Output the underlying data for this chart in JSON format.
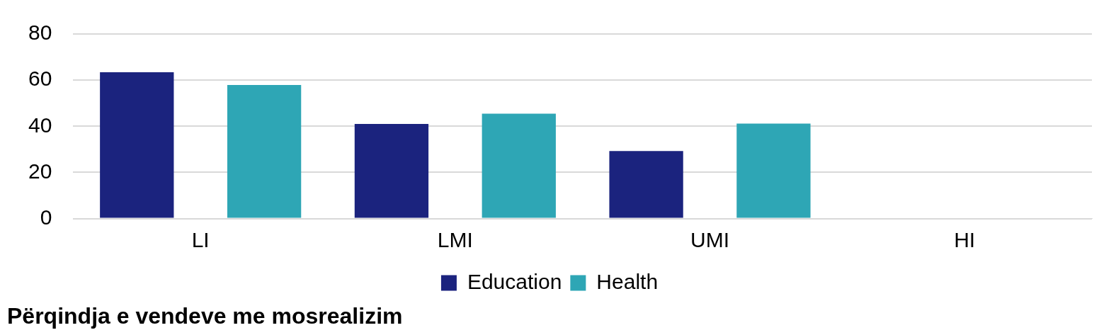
{
  "chart_data": {
    "type": "bar",
    "title": "Përqindja e vendeve me mosrealizim",
    "categories": [
      "LI",
      "LMI",
      "UMI",
      "HI"
    ],
    "series": [
      {
        "name": "Education",
        "color": "#1b237e",
        "values": [
          63.4,
          41,
          29.3,
          null
        ]
      },
      {
        "name": "Health",
        "color": "#2ea6b5",
        "values": [
          57.9,
          45.5,
          41.2,
          null
        ]
      }
    ],
    "ylim": [
      0,
      80
    ],
    "yticks": [
      0,
      20,
      40,
      60,
      80
    ],
    "grid": "y",
    "legend": "bottom"
  }
}
